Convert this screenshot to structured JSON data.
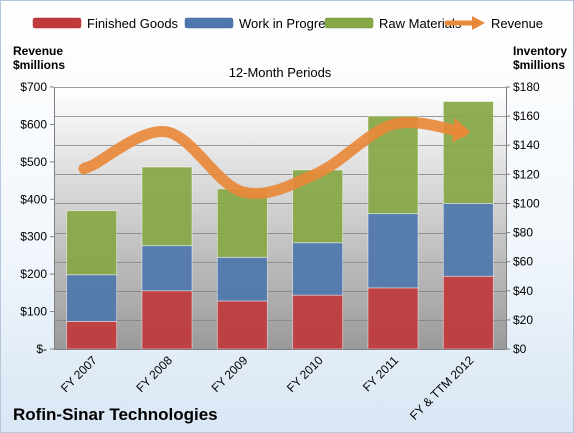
{
  "chart_data": {
    "type": "bar",
    "title": "Rofin-Sinar Technologies",
    "subtitle": "12-Month Periods",
    "ylabel_left": [
      "Revenue",
      "$millions"
    ],
    "ylabel_right": [
      "Inventory",
      "$millions"
    ],
    "categories": [
      "FY 2007",
      "FY 2008",
      "FY 2009",
      "FY 2010",
      "FY 2011",
      "FY & TTM 2012"
    ],
    "stacked": true,
    "series": [
      {
        "name": "Finished Goods",
        "axis": "right",
        "color": "#c0393b",
        "values": [
          19,
          40,
          33,
          37,
          42,
          50
        ]
      },
      {
        "name": "Work in Progress",
        "axis": "right",
        "color": "#4f77ad",
        "values": [
          32,
          31,
          30,
          36,
          51,
          50
        ]
      },
      {
        "name": "Raw Materials",
        "axis": "right",
        "color": "#86a746",
        "values": [
          44,
          54,
          47,
          50,
          67,
          70
        ]
      },
      {
        "name": "Revenue",
        "type": "line",
        "axis": "left",
        "color": "#e8893a",
        "values": [
          490,
          580,
          420,
          470,
          600,
          580
        ]
      }
    ],
    "yleft": {
      "min": 0,
      "max": 700,
      "ticks": [
        0,
        100,
        200,
        300,
        400,
        500,
        600,
        700
      ],
      "tick_labels": [
        "$-",
        "$100",
        "$200",
        "$300",
        "$400",
        "$500",
        "$600",
        "$700"
      ]
    },
    "yright": {
      "min": 0,
      "max": 180,
      "ticks": [
        0,
        20,
        40,
        60,
        80,
        100,
        120,
        140,
        160,
        180
      ],
      "tick_labels": [
        "$0",
        "$20",
        "$40",
        "$60",
        "$80",
        "$100",
        "$120",
        "$140",
        "$160",
        "$180"
      ]
    },
    "legend_position": "top",
    "grid": true
  }
}
